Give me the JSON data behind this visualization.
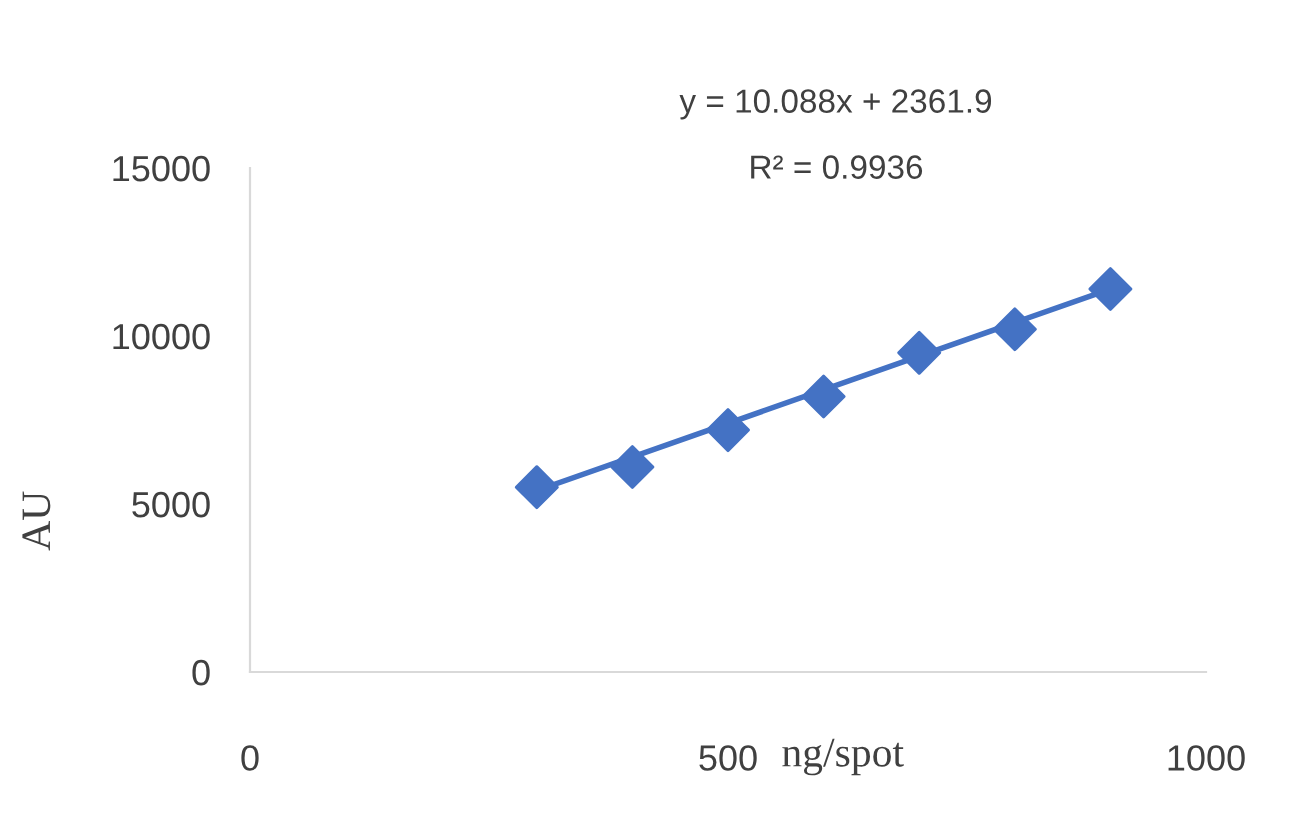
{
  "chart_data": {
    "type": "scatter",
    "xlabel": "ng/spot",
    "ylabel": "AU",
    "annotations": [
      "y = 10.088x + 2361.9",
      "R² = 0.9936"
    ],
    "series": [
      {
        "color": "#4472c4",
        "marker": "diamond",
        "x": [
          300,
          400,
          500,
          600,
          700,
          800,
          900
        ],
        "values": [
          5500,
          6100,
          7200,
          8200,
          9500,
          10200,
          11400
        ]
      },
      {
        "type": "line",
        "color": "#4472c4",
        "x": [
          300,
          900
        ],
        "values": [
          5400,
          11400
        ]
      }
    ],
    "xlim": [
      0,
      1000
    ],
    "xticks": [
      0,
      500,
      1000
    ],
    "ylim": [
      0,
      15000
    ],
    "yticks": [
      0,
      5000,
      10000,
      15000
    ],
    "grid": false
  }
}
